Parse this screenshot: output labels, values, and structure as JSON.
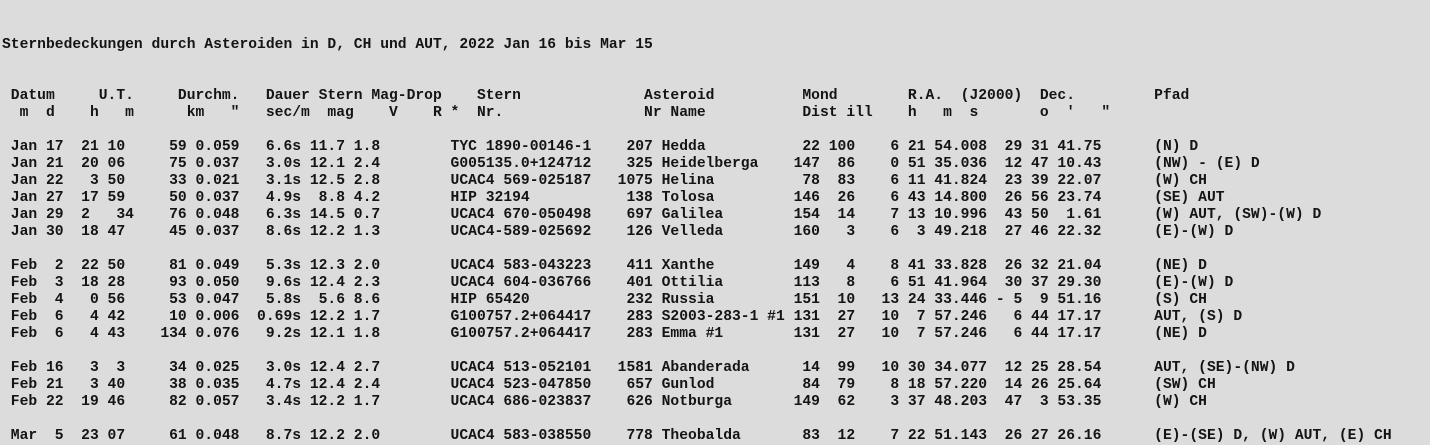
{
  "title": "Sternbedeckungen durch Asteroiden in D, CH und AUT, 2022 Jan 16 bis Mar 15",
  "colors": {
    "background": "#dcdcdc",
    "text": "#141414"
  },
  "header": {
    "line1": [
      [
        1,
        "Datum"
      ],
      [
        11,
        "U.T."
      ],
      [
        20,
        "Durchm."
      ],
      [
        30,
        "Dauer"
      ],
      [
        36,
        "Stern"
      ],
      [
        42,
        "Mag-Drop"
      ],
      [
        54,
        "Stern"
      ],
      [
        73,
        "Asteroid"
      ],
      [
        91,
        "Mond"
      ],
      [
        103,
        "R.A."
      ],
      [
        109,
        "(J2000)"
      ],
      [
        118,
        "Dec."
      ],
      [
        131,
        "Pfad"
      ]
    ],
    "line2": [
      [
        2,
        "m"
      ],
      [
        5,
        "d"
      ],
      [
        10,
        "h"
      ],
      [
        14,
        "m"
      ],
      [
        21,
        "km"
      ],
      [
        26,
        "\""
      ],
      [
        30,
        "sec/m"
      ],
      [
        37,
        "mag"
      ],
      [
        44,
        "V"
      ],
      [
        49,
        "R"
      ],
      [
        51,
        "*"
      ],
      [
        54,
        "Nr."
      ],
      [
        73,
        "Nr"
      ],
      [
        76,
        "Name"
      ],
      [
        91,
        "Dist"
      ],
      [
        96,
        "ill"
      ],
      [
        103,
        "h"
      ],
      [
        107,
        "m"
      ],
      [
        110,
        "s"
      ],
      [
        118,
        "o"
      ],
      [
        121,
        "'"
      ],
      [
        125,
        "\""
      ]
    ]
  },
  "columns": [
    {
      "key": "month",
      "col": 1
    },
    {
      "key": "day",
      "end": 6
    },
    {
      "key": "hour",
      "end": 10
    },
    {
      "key": "minute",
      "end": 13
    },
    {
      "key": "km",
      "end": 20
    },
    {
      "key": "diam_arcsec",
      "col": 22
    },
    {
      "key": "duration",
      "end": 33
    },
    {
      "key": "star_mag",
      "end": 38
    },
    {
      "key": "mag_drop",
      "col": 40
    },
    {
      "key": "star_id",
      "col": 51
    },
    {
      "key": "asteroid_nr",
      "end": 73
    },
    {
      "key": "asteroid_name",
      "col": 75
    },
    {
      "key": "moon_dist",
      "end": 92
    },
    {
      "key": "moon_ill",
      "end": 96
    },
    {
      "key": "ra_h",
      "end": 101
    },
    {
      "key": "ra_m",
      "end": 104
    },
    {
      "key": "ra_s",
      "end": 111
    },
    {
      "key": "dec_deg",
      "end": 115
    },
    {
      "key": "dec_min",
      "end": 118
    },
    {
      "key": "dec_sec",
      "end": 124
    },
    {
      "key": "path",
      "col": 131
    }
  ],
  "rows": [
    {
      "month": "Jan",
      "day": "17",
      "hour": "21",
      "minute": "10",
      "km": "59",
      "diam_arcsec": "0.059",
      "duration": "6.6s",
      "star_mag": "11.7",
      "mag_drop": "1.8",
      "star_id": "TYC 1890-00146-1",
      "asteroid_nr": "207",
      "asteroid_name": "Hedda",
      "moon_dist": "22",
      "moon_ill": "100",
      "ra_h": "6",
      "ra_m": "21",
      "ra_s": "54.008",
      "dec_deg": "29",
      "dec_min": "31",
      "dec_sec": "41.75",
      "path": "(N) D"
    },
    {
      "month": "Jan",
      "day": "21",
      "hour": "20",
      "minute": "06",
      "km": "75",
      "diam_arcsec": "0.037",
      "duration": "3.0s",
      "star_mag": "12.1",
      "mag_drop": "2.4",
      "star_id": "G005135.0+124712",
      "asteroid_nr": "325",
      "asteroid_name": "Heidelberga",
      "moon_dist": "147",
      "moon_ill": "86",
      "ra_h": "0",
      "ra_m": "51",
      "ra_s": "35.036",
      "dec_deg": "12",
      "dec_min": "47",
      "dec_sec": "10.43",
      "path": "(NW) - (E) D"
    },
    {
      "month": "Jan",
      "day": "22",
      "hour": "3",
      "minute": "50",
      "km": "33",
      "diam_arcsec": "0.021",
      "duration": "3.1s",
      "star_mag": "12.5",
      "mag_drop": "2.8",
      "star_id": "UCAC4 569-025187",
      "asteroid_nr": "1075",
      "asteroid_name": "Helina",
      "moon_dist": "78",
      "moon_ill": "83",
      "ra_h": "6",
      "ra_m": "11",
      "ra_s": "41.824",
      "dec_deg": "23",
      "dec_min": "39",
      "dec_sec": "22.07",
      "path": "(W) CH"
    },
    {
      "month": "Jan",
      "day": "27",
      "hour": "17",
      "minute": "59",
      "km": "50",
      "diam_arcsec": "0.037",
      "duration": "4.9s",
      "star_mag": "8.8",
      "mag_drop": "4.2",
      "star_id": "HIP 32194",
      "asteroid_nr": "138",
      "asteroid_name": "Tolosa",
      "moon_dist": "146",
      "moon_ill": "26",
      "ra_h": "6",
      "ra_m": "43",
      "ra_s": "14.800",
      "dec_deg": "26",
      "dec_min": "56",
      "dec_sec": "23.74",
      "path": "(SE) AUT"
    },
    {
      "month": "Jan",
      "day": "29",
      "hour": "2",
      "minute": "34",
      "ut_override": "2   34",
      "km": "76",
      "diam_arcsec": "0.048",
      "duration": "6.3s",
      "star_mag": "14.5",
      "mag_drop": "0.7",
      "star_id": "UCAC4 670-050498",
      "asteroid_nr": "697",
      "asteroid_name": "Galilea",
      "moon_dist": "154",
      "moon_ill": "14",
      "ra_h": "7",
      "ra_m": "13",
      "ra_s": "10.996",
      "dec_deg": "43",
      "dec_min": "50",
      "dec_sec": "1.61",
      "path": "(W) AUT, (SW)-(W) D"
    },
    {
      "month": "Jan",
      "day": "30",
      "hour": "18",
      "minute": "47",
      "km": "45",
      "diam_arcsec": "0.037",
      "duration": "8.6s",
      "star_mag": "12.2",
      "mag_drop": "1.3",
      "star_id": "UCAC4-589-025692",
      "asteroid_nr": "126",
      "asteroid_name": "Velleda",
      "moon_dist": "160",
      "moon_ill": "3",
      "ra_h": "6",
      "ra_m": "3",
      "ra_s": "49.218",
      "dec_deg": "27",
      "dec_min": "46",
      "dec_sec": "22.32",
      "path": "(E)-(W) D"
    },
    {
      "gap_before": true,
      "month": "Feb",
      "day": "2",
      "hour": "22",
      "minute": "50",
      "km": "81",
      "diam_arcsec": "0.049",
      "duration": "5.3s",
      "star_mag": "12.3",
      "mag_drop": "2.0",
      "star_id": "UCAC4 583-043223",
      "asteroid_nr": "411",
      "asteroid_name": "Xanthe",
      "moon_dist": "149",
      "moon_ill": "4",
      "ra_h": "8",
      "ra_m": "41",
      "ra_s": "33.828",
      "dec_deg": "26",
      "dec_min": "32",
      "dec_sec": "21.04",
      "path": "(NE) D"
    },
    {
      "month": "Feb",
      "day": "3",
      "hour": "18",
      "minute": "28",
      "km": "93",
      "diam_arcsec": "0.050",
      "duration": "9.6s",
      "star_mag": "12.4",
      "mag_drop": "2.3",
      "star_id": "UCAC4 604-036766",
      "asteroid_nr": "401",
      "asteroid_name": "Ottilia",
      "moon_dist": "113",
      "moon_ill": "8",
      "ra_h": "6",
      "ra_m": "51",
      "ra_s": "41.964",
      "dec_deg": "30",
      "dec_min": "37",
      "dec_sec": "29.30",
      "path": "(E)-(W) D"
    },
    {
      "month": "Feb",
      "day": "4",
      "hour": "0",
      "minute": "56",
      "km": "53",
      "diam_arcsec": "0.047",
      "duration": "5.8s",
      "star_mag": "5.6",
      "mag_drop": "8.6",
      "star_id": "HIP 65420",
      "asteroid_nr": "232",
      "asteroid_name": "Russia",
      "moon_dist": "151",
      "moon_ill": "10",
      "ra_h": "13",
      "ra_m": "24",
      "ra_s": "33.446",
      "dec_deg": "- 5",
      "dec_min": "9",
      "dec_sec": "51.16",
      "path": "(S) CH"
    },
    {
      "month": "Feb",
      "day": "6",
      "hour": "4",
      "minute": "42",
      "km": "10",
      "diam_arcsec": "0.006",
      "duration": "0.69s",
      "star_mag": "12.2",
      "mag_drop": "1.7",
      "star_id": "G100757.2+064417",
      "asteroid_nr": "283",
      "asteroid_name": "S2003-283-1 #1",
      "moon_dist": "131",
      "moon_ill": "27",
      "ra_h": "10",
      "ra_m": "7",
      "ra_s": "57.246",
      "dec_deg": "6",
      "dec_min": "44",
      "dec_sec": "17.17",
      "path": "AUT, (S) D"
    },
    {
      "month": "Feb",
      "day": "6",
      "hour": "4",
      "minute": "43",
      "km": "134",
      "diam_arcsec": "0.076",
      "duration": "9.2s",
      "star_mag": "12.1",
      "mag_drop": "1.8",
      "star_id": "G100757.2+064417",
      "asteroid_nr": "283",
      "asteroid_name": "Emma #1",
      "moon_dist": "131",
      "moon_ill": "27",
      "ra_h": "10",
      "ra_m": "7",
      "ra_s": "57.246",
      "dec_deg": "6",
      "dec_min": "44",
      "dec_sec": "17.17",
      "path": "(NE) D"
    },
    {
      "gap_before": true,
      "month": "Feb",
      "day": "16",
      "hour": "3",
      "minute": "3",
      "km": "34",
      "diam_arcsec": "0.025",
      "duration": "3.0s",
      "star_mag": "12.4",
      "mag_drop": "2.7",
      "star_id": "UCAC4 513-052101",
      "asteroid_nr": "1581",
      "asteroid_name": "Abanderada",
      "moon_dist": "14",
      "moon_ill": "99",
      "ra_h": "10",
      "ra_m": "30",
      "ra_s": "34.077",
      "dec_deg": "12",
      "dec_min": "25",
      "dec_sec": "28.54",
      "path": "AUT, (SE)-(NW) D"
    },
    {
      "month": "Feb",
      "day": "21",
      "hour": "3",
      "minute": "40",
      "km": "38",
      "diam_arcsec": "0.035",
      "duration": "4.7s",
      "star_mag": "12.4",
      "mag_drop": "2.4",
      "star_id": "UCAC4 523-047850",
      "asteroid_nr": "657",
      "asteroid_name": "Gunlod",
      "moon_dist": "84",
      "moon_ill": "79",
      "ra_h": "8",
      "ra_m": "18",
      "ra_s": "57.220",
      "dec_deg": "14",
      "dec_min": "26",
      "dec_sec": "25.64",
      "path": "(SW) CH"
    },
    {
      "month": "Feb",
      "day": "22",
      "hour": "19",
      "minute": "46",
      "km": "82",
      "diam_arcsec": "0.057",
      "duration": "3.4s",
      "star_mag": "12.2",
      "mag_drop": "1.7",
      "star_id": "UCAC4 686-023837",
      "asteroid_nr": "626",
      "asteroid_name": "Notburga",
      "moon_dist": "149",
      "moon_ill": "62",
      "ra_h": "3",
      "ra_m": "37",
      "ra_s": "48.203",
      "dec_deg": "47",
      "dec_min": "3",
      "dec_sec": "53.35",
      "path": "(W) CH"
    },
    {
      "gap_before": true,
      "month": "Mar",
      "day": "5",
      "hour": "23",
      "minute": "07",
      "km": "61",
      "diam_arcsec": "0.048",
      "duration": "8.7s",
      "star_mag": "12.2",
      "mag_drop": "2.0",
      "star_id": "UCAC4 583-038550",
      "asteroid_nr": "778",
      "asteroid_name": "Theobalda",
      "moon_dist": "83",
      "moon_ill": "12",
      "ra_h": "7",
      "ra_m": "22",
      "ra_s": "51.143",
      "dec_deg": "26",
      "dec_min": "27",
      "dec_sec": "26.16",
      "path": "(E)-(SE) D, (W) AUT, (E) CH"
    }
  ]
}
